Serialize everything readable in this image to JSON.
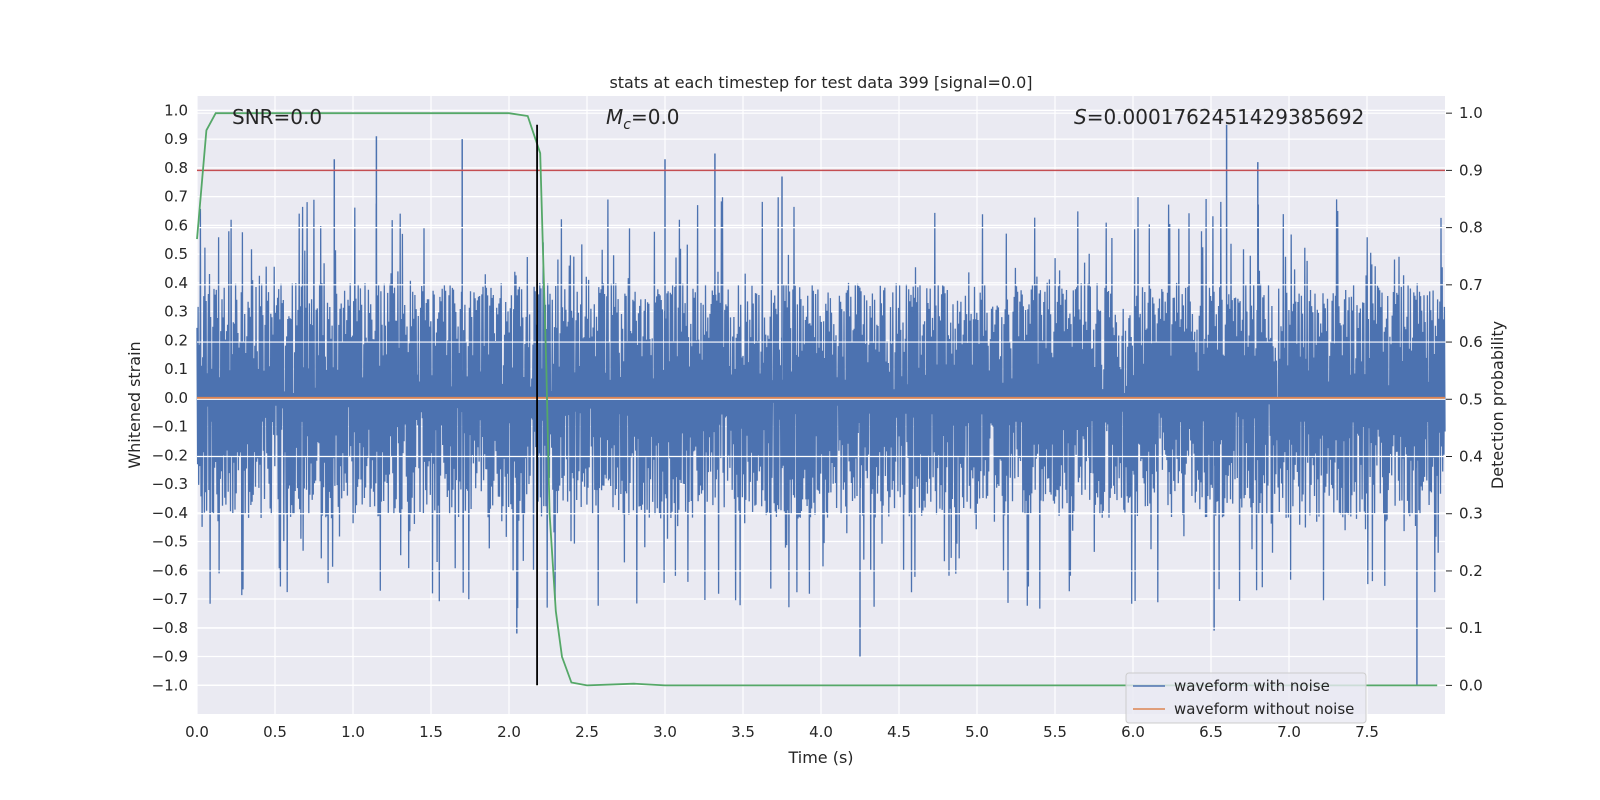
{
  "chart_data": {
    "type": "line",
    "title": "stats at each timestep for test data 399 [signal=0.0]",
    "xlabel": "Time (s)",
    "ylabel": "Whitened strain",
    "y2label": "Detection probability",
    "xlim": [
      0.0,
      8.0
    ],
    "ylim": [
      -1.1,
      1.05
    ],
    "y2lim": [
      -0.05,
      1.03
    ],
    "xticks": [
      0.0,
      0.5,
      1.0,
      1.5,
      2.0,
      2.5,
      3.0,
      3.5,
      4.0,
      4.5,
      5.0,
      5.5,
      6.0,
      6.5,
      7.0,
      7.5
    ],
    "yticks": [
      -1.0,
      -0.9,
      -0.8,
      -0.7,
      -0.6,
      -0.5,
      -0.4,
      -0.3,
      -0.2,
      -0.1,
      0.0,
      0.1,
      0.2,
      0.3,
      0.4,
      0.5,
      0.6,
      0.7,
      0.8,
      0.9,
      1.0
    ],
    "y2ticks": [
      0.0,
      0.1,
      0.2,
      0.3,
      0.4,
      0.5,
      0.6,
      0.7,
      0.8,
      0.9,
      1.0
    ],
    "annotations": {
      "snr": "SNR=0.0",
      "mc_symbol": "M",
      "mc_subscript": "c",
      "mc_value": "=0.0",
      "s_symbol": "S",
      "s_value": "=0.0001762451429385692"
    },
    "threshold": 0.9,
    "threshold_color": "#c44e52",
    "vline_x": 2.18,
    "vline_ymin": -1.0,
    "vline_ymax": 0.95,
    "series": [
      {
        "name": "waveform with noise",
        "color": "#4c72b0",
        "envelope_upper_typical": 0.4,
        "envelope_lower_typical": -0.42,
        "peaks": [
          {
            "x": 0.88,
            "y": 0.83
          },
          {
            "x": 1.15,
            "y": 0.91
          },
          {
            "x": 1.7,
            "y": 0.9
          },
          {
            "x": 3.0,
            "y": 0.83
          },
          {
            "x": 3.32,
            "y": 0.85
          },
          {
            "x": 3.75,
            "y": 0.77
          },
          {
            "x": 6.6,
            "y": 0.95
          },
          {
            "x": 6.8,
            "y": 0.82
          },
          {
            "x": 7.82,
            "y": -1.0
          },
          {
            "x": 2.05,
            "y": -0.82
          },
          {
            "x": 4.25,
            "y": -0.9
          },
          {
            "x": 6.52,
            "y": -0.81
          }
        ]
      },
      {
        "name": "waveform without noise",
        "color": "#dd8452",
        "values": [
          {
            "x": 0.0,
            "y": 0.0
          },
          {
            "x": 8.0,
            "y": 0.0
          }
        ]
      },
      {
        "name": "detection probability",
        "color": "#55a868",
        "axis": "right",
        "points": [
          {
            "x": 0.0,
            "y": 0.78
          },
          {
            "x": 0.06,
            "y": 0.97
          },
          {
            "x": 0.12,
            "y": 1.0
          },
          {
            "x": 0.5,
            "y": 1.0
          },
          {
            "x": 1.0,
            "y": 1.0
          },
          {
            "x": 1.5,
            "y": 1.0
          },
          {
            "x": 2.0,
            "y": 1.0
          },
          {
            "x": 2.12,
            "y": 0.995
          },
          {
            "x": 2.2,
            "y": 0.93
          },
          {
            "x": 2.24,
            "y": 0.55
          },
          {
            "x": 2.26,
            "y": 0.3
          },
          {
            "x": 2.3,
            "y": 0.13
          },
          {
            "x": 2.34,
            "y": 0.05
          },
          {
            "x": 2.4,
            "y": 0.005
          },
          {
            "x": 2.5,
            "y": 0.0
          },
          {
            "x": 2.8,
            "y": 0.003
          },
          {
            "x": 3.0,
            "y": 0.0
          },
          {
            "x": 4.0,
            "y": 0.0
          },
          {
            "x": 5.0,
            "y": 0.0
          },
          {
            "x": 6.0,
            "y": 0.0
          },
          {
            "x": 7.0,
            "y": 0.0
          },
          {
            "x": 7.95,
            "y": 0.0
          }
        ]
      }
    ],
    "legend": {
      "placement": "lower-right",
      "entries": [
        {
          "label": "waveform with noise",
          "color": "#4c72b0"
        },
        {
          "label": "waveform without noise",
          "color": "#dd8452"
        }
      ]
    }
  }
}
